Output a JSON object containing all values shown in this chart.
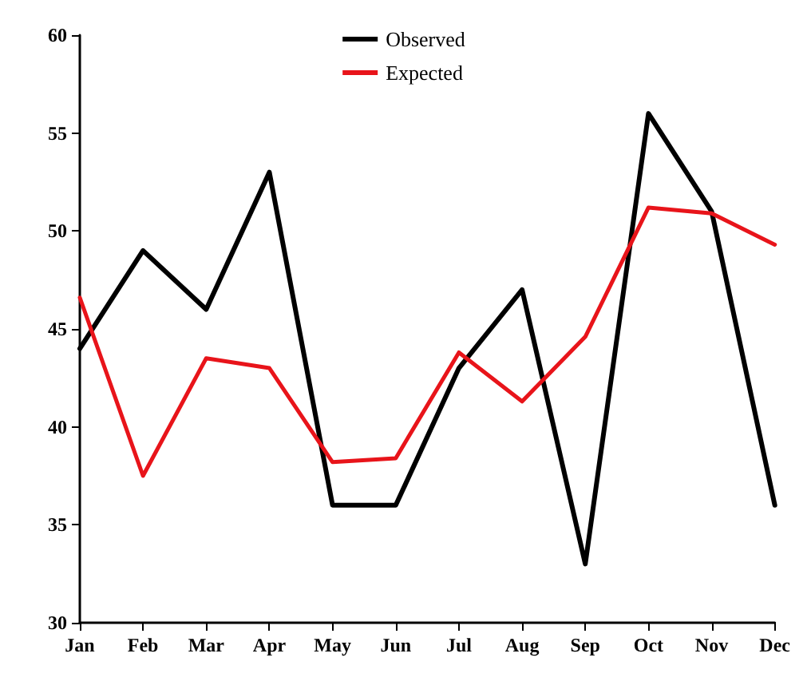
{
  "chart_data": {
    "type": "line",
    "categories": [
      "Jan",
      "Feb",
      "Mar",
      "Apr",
      "May",
      "Jun",
      "Jul",
      "Aug",
      "Sep",
      "Oct",
      "Nov",
      "Dec"
    ],
    "series": [
      {
        "name": "Observed",
        "color": "#000000",
        "values": [
          44,
          49,
          46,
          53,
          36,
          36,
          43,
          47,
          33,
          56,
          51,
          36
        ]
      },
      {
        "name": "Expected",
        "color": "#e8141a",
        "values": [
          46.6,
          37.5,
          43.5,
          43,
          38.2,
          38.4,
          43.8,
          41.3,
          44.6,
          51.2,
          50.9,
          49.3
        ]
      }
    ],
    "ylim": [
      30,
      60
    ],
    "yticks": [
      30,
      35,
      40,
      45,
      50,
      55,
      60
    ],
    "grid": false,
    "legend": "top",
    "marker": "none",
    "line_style": "solid"
  }
}
